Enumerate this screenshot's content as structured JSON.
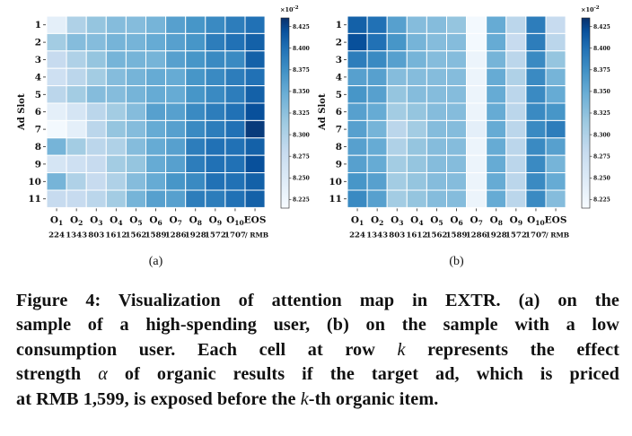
{
  "figure": {
    "panels": [
      {
        "id": "a",
        "label": "(a)",
        "ylabel": "Ad Slot",
        "row_labels": [
          "1",
          "2",
          "3",
          "4",
          "5",
          "6",
          "7",
          "8",
          "9",
          "10",
          "11"
        ],
        "col_symbols": [
          "O",
          "O",
          "O",
          "O",
          "O",
          "O",
          "O",
          "O",
          "O",
          "O",
          "EOS"
        ],
        "col_subscripts": [
          "1",
          "2",
          "3",
          "4",
          "5",
          "6",
          "7",
          "8",
          "9",
          "10",
          ""
        ],
        "col_prices": [
          "224",
          "1343",
          "803",
          "1612",
          "1562",
          "1589",
          "1286",
          "1928",
          "1572",
          "1707",
          "/ RMB"
        ]
      },
      {
        "id": "b",
        "label": "(b)",
        "ylabel": "Ad Slot",
        "row_labels": [
          "1",
          "2",
          "3",
          "4",
          "5",
          "6",
          "7",
          "8",
          "9",
          "10",
          "11"
        ],
        "col_symbols": [
          "O",
          "O",
          "O",
          "O",
          "O",
          "O",
          "O",
          "O",
          "O",
          "O",
          "EOS"
        ],
        "col_subscripts": [
          "1",
          "2",
          "3",
          "4",
          "5",
          "6",
          "7",
          "8",
          "9",
          "10",
          ""
        ],
        "col_prices": [
          "224",
          "1343",
          "803",
          "1612",
          "1562",
          "1589",
          "1286",
          "1928",
          "1572",
          "1707",
          "/ RMB"
        ]
      }
    ],
    "colorbar": {
      "exponent": "×10",
      "exponent_power": "-2",
      "ticks": [
        "8.425",
        "8.400",
        "8.375",
        "8.350",
        "8.325",
        "8.300",
        "8.275",
        "8.250",
        "8.225"
      ],
      "tick_values": [
        8.425,
        8.4,
        8.375,
        8.35,
        8.325,
        8.3,
        8.275,
        8.25,
        8.225
      ],
      "range": [
        8.215,
        8.435
      ],
      "color_low": "#f7fbff",
      "color_high": "#08306b"
    }
  },
  "chart_data": [
    {
      "type": "heatmap",
      "title": "(a)",
      "xlabel": "",
      "ylabel": "Ad Slot",
      "x": [
        "O1",
        "O2",
        "O3",
        "O4",
        "O5",
        "O6",
        "O7",
        "O8",
        "O9",
        "O10",
        "EOS"
      ],
      "y": [
        "1",
        "2",
        "3",
        "4",
        "5",
        "6",
        "7",
        "8",
        "9",
        "10",
        "11"
      ],
      "value_scale": "×10^-2",
      "z": [
        [
          8.24,
          8.3,
          8.32,
          8.33,
          8.33,
          8.34,
          8.36,
          8.37,
          8.38,
          8.39,
          8.4
        ],
        [
          8.31,
          8.33,
          8.33,
          8.34,
          8.34,
          8.35,
          8.36,
          8.37,
          8.39,
          8.4,
          8.41
        ],
        [
          8.28,
          8.3,
          8.32,
          8.34,
          8.34,
          8.34,
          8.36,
          8.37,
          8.38,
          8.38,
          8.41
        ],
        [
          8.27,
          8.29,
          8.31,
          8.33,
          8.34,
          8.35,
          8.35,
          8.37,
          8.38,
          8.39,
          8.4
        ],
        [
          8.29,
          8.31,
          8.33,
          8.33,
          8.34,
          8.35,
          8.35,
          8.37,
          8.38,
          8.39,
          8.41
        ],
        [
          8.24,
          8.26,
          8.29,
          8.31,
          8.33,
          8.36,
          8.36,
          8.38,
          8.39,
          8.4,
          8.42
        ],
        [
          8.22,
          8.24,
          8.29,
          8.32,
          8.33,
          8.35,
          8.36,
          8.38,
          8.39,
          8.4,
          8.43
        ],
        [
          8.34,
          8.31,
          8.29,
          8.3,
          8.33,
          8.35,
          8.36,
          8.39,
          8.4,
          8.4,
          8.41
        ],
        [
          8.26,
          8.27,
          8.28,
          8.31,
          8.32,
          8.35,
          8.36,
          8.39,
          8.4,
          8.4,
          8.42
        ],
        [
          8.34,
          8.3,
          8.28,
          8.3,
          8.33,
          8.35,
          8.37,
          8.38,
          8.4,
          8.4,
          8.41
        ],
        [
          8.28,
          8.28,
          8.29,
          8.31,
          8.34,
          8.36,
          8.36,
          8.39,
          8.39,
          8.4,
          8.41
        ]
      ]
    },
    {
      "type": "heatmap",
      "title": "(b)",
      "xlabel": "",
      "ylabel": "Ad Slot",
      "x": [
        "O1",
        "O2",
        "O3",
        "O4",
        "O5",
        "O6",
        "O7",
        "O8",
        "O9",
        "O10",
        "EOS"
      ],
      "y": [
        "1",
        "2",
        "3",
        "4",
        "5",
        "6",
        "7",
        "8",
        "9",
        "10",
        "11"
      ],
      "value_scale": "×10^-2",
      "z": [
        [
          8.41,
          8.4,
          8.36,
          8.33,
          8.33,
          8.32,
          8.22,
          8.35,
          8.29,
          8.39,
          8.28
        ],
        [
          8.42,
          8.4,
          8.37,
          8.34,
          8.33,
          8.33,
          8.22,
          8.35,
          8.28,
          8.39,
          8.29
        ],
        [
          8.39,
          8.38,
          8.36,
          8.34,
          8.33,
          8.33,
          8.23,
          8.34,
          8.29,
          8.38,
          8.32
        ],
        [
          8.36,
          8.36,
          8.33,
          8.33,
          8.33,
          8.33,
          8.23,
          8.35,
          8.3,
          8.38,
          8.34
        ],
        [
          8.37,
          8.36,
          8.32,
          8.33,
          8.33,
          8.33,
          8.23,
          8.35,
          8.29,
          8.38,
          8.35
        ],
        [
          8.36,
          8.35,
          8.31,
          8.32,
          8.33,
          8.33,
          8.23,
          8.35,
          8.29,
          8.38,
          8.37
        ],
        [
          8.36,
          8.34,
          8.29,
          8.31,
          8.33,
          8.33,
          8.24,
          8.35,
          8.29,
          8.38,
          8.39
        ],
        [
          8.36,
          8.35,
          8.3,
          8.32,
          8.33,
          8.33,
          8.23,
          8.35,
          8.29,
          8.38,
          8.36
        ],
        [
          8.36,
          8.35,
          8.31,
          8.32,
          8.33,
          8.33,
          8.23,
          8.35,
          8.29,
          8.38,
          8.34
        ],
        [
          8.37,
          8.36,
          8.31,
          8.32,
          8.33,
          8.33,
          8.23,
          8.35,
          8.29,
          8.38,
          8.35
        ],
        [
          8.38,
          8.36,
          8.31,
          8.32,
          8.33,
          8.33,
          8.23,
          8.35,
          8.29,
          8.38,
          8.33
        ]
      ]
    }
  ],
  "caption": {
    "line1": "Figure 4: Visualization of attention map in EXTR. (a) on the",
    "line2": "sample of a high-spending user, (b) on the sample with a low",
    "line3": "consumption user. Each cell at row",
    "line3_var": "k",
    "line3_rest": "represents the effect",
    "line4": "strength",
    "line4_var": "α",
    "line4_rest": "of organic results if the target ad, which is priced",
    "line5": "at RMB 1,599, is exposed before the",
    "line5_var": "k",
    "line5_rest": "-th organic item."
  }
}
